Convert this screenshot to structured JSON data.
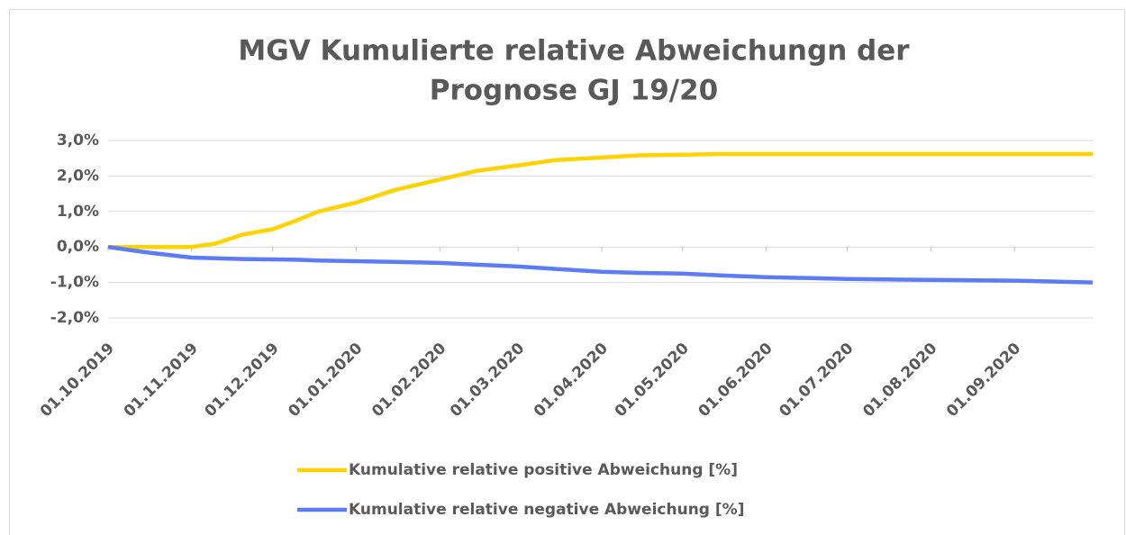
{
  "chart_data": {
    "type": "line",
    "title": [
      "MGV Kumulierte relative Abweichungn der",
      "Prognose GJ 19/20"
    ],
    "x": [
      "01.10.2019",
      "15.10.2019",
      "01.11.2019",
      "10.11.2019",
      "20.11.2019",
      "01.12.2019",
      "10.12.2019",
      "18.12.2019",
      "01.01.2020",
      "15.01.2020",
      "01.02.2020",
      "15.02.2020",
      "01.03.2020",
      "15.03.2020",
      "01.04.2020",
      "15.04.2020",
      "01.05.2020",
      "15.05.2020",
      "01.06.2020",
      "01.07.2020",
      "01.08.2020",
      "01.09.2020",
      "30.09.2020"
    ],
    "series": [
      {
        "name": "Kumulative relative positive Abweichung [%]",
        "color": "#ffd200",
        "values": [
          0,
          0,
          0,
          0.1,
          0.35,
          0.5,
          0.75,
          1.0,
          1.25,
          1.6,
          1.9,
          2.15,
          2.3,
          2.45,
          2.52,
          2.58,
          2.6,
          2.62,
          2.62,
          2.62,
          2.62,
          2.62,
          2.62
        ]
      },
      {
        "name": "Kumulative relative negative Abweichung [%]",
        "color": "#5b7cf5",
        "values": [
          0,
          -0.15,
          -0.3,
          -0.32,
          -0.34,
          -0.35,
          -0.36,
          -0.38,
          -0.4,
          -0.42,
          -0.45,
          -0.5,
          -0.55,
          -0.62,
          -0.7,
          -0.73,
          -0.75,
          -0.8,
          -0.85,
          -0.9,
          -0.93,
          -0.95,
          -1.0
        ]
      }
    ],
    "xlim": [
      "01.10.2019",
      "30.09.2020"
    ],
    "xticks": [
      "01.10.2019",
      "01.11.2019",
      "01.12.2019",
      "01.01.2020",
      "01.02.2020",
      "01.03.2020",
      "01.04.2020",
      "01.05.2020",
      "01.06.2020",
      "01.07.2020",
      "01.08.2020",
      "01.09.2020"
    ],
    "ylim": [
      -2,
      3
    ],
    "yticks": [
      {
        "value": -2,
        "label": "-2,0%"
      },
      {
        "value": -1,
        "label": "-1,0%"
      },
      {
        "value": 0,
        "label": "0,0%"
      },
      {
        "value": 1,
        "label": "1,0%"
      },
      {
        "value": 2,
        "label": "2,0%"
      },
      {
        "value": 3,
        "label": "3,0%"
      }
    ],
    "grid": true,
    "legend": "bottom"
  }
}
